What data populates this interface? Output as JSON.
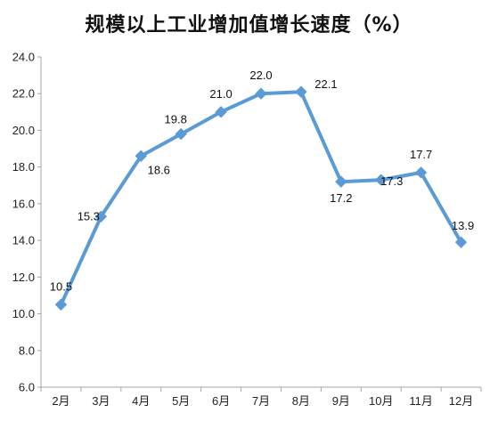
{
  "chart_data": {
    "type": "line",
    "title": "规模以上工业增加值增长速度（%）",
    "categories": [
      "2月",
      "3月",
      "4月",
      "5月",
      "6月",
      "7月",
      "8月",
      "9月",
      "10月",
      "11月",
      "12月"
    ],
    "series": [
      {
        "values": [
          10.5,
          15.3,
          18.6,
          19.8,
          21.0,
          22.0,
          22.1,
          17.2,
          17.3,
          17.7,
          13.9
        ],
        "color": "#5b9bd5"
      }
    ],
    "ylim": [
      6.0,
      24.0
    ],
    "yticks": [
      "6.0",
      "8.0",
      "10.0",
      "12.0",
      "14.0",
      "16.0",
      "18.0",
      "20.0",
      "22.0",
      "24.0"
    ],
    "data_labels": [
      "10.5",
      "15.3",
      "18.6",
      "19.8",
      "21.0",
      "22.0",
      "22.1",
      "17.2",
      "17.3",
      "17.7",
      "13.9"
    ],
    "grid": false,
    "legend": "none",
    "axis_color": "#a6a6a6"
  }
}
